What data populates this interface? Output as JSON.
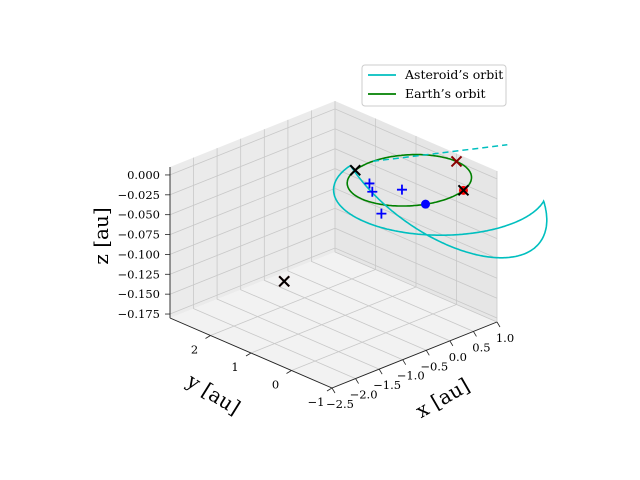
{
  "chart_data": {
    "type": "line3d",
    "xlabel": "x [au]",
    "ylabel": "y [au]",
    "zlabel": "z [au]",
    "xlim": [
      -2.5,
      1.0
    ],
    "ylim": [
      -1.0,
      3.0
    ],
    "zlim": [
      -0.18,
      0.01
    ],
    "x_ticks": [
      {
        "v": -2.5,
        "label": "−2.5"
      },
      {
        "v": -2.0,
        "label": "−2.0"
      },
      {
        "v": -1.5,
        "label": "−1.5"
      },
      {
        "v": -1.0,
        "label": "−1.0"
      },
      {
        "v": -0.5,
        "label": "−0.5"
      },
      {
        "v": 0.0,
        "label": "0.0"
      },
      {
        "v": 0.5,
        "label": "0.5"
      },
      {
        "v": 1.0,
        "label": "1.0"
      }
    ],
    "y_ticks": [
      {
        "v": -1,
        "label": "−1"
      },
      {
        "v": 0,
        "label": "0"
      },
      {
        "v": 1,
        "label": "1"
      },
      {
        "v": 2,
        "label": "2"
      }
    ],
    "z_ticks": [
      {
        "v": 0.0,
        "label": "0.000"
      },
      {
        "v": -0.025,
        "label": "−0.025"
      },
      {
        "v": -0.05,
        "label": "−0.050"
      },
      {
        "v": -0.075,
        "label": "−0.075"
      },
      {
        "v": -0.1,
        "label": "−0.100"
      },
      {
        "v": -0.125,
        "label": "−0.125"
      },
      {
        "v": -0.15,
        "label": "−0.150"
      },
      {
        "v": -0.175,
        "label": "−0.175"
      }
    ],
    "grid": true,
    "legend_position": "top-right",
    "series": [
      {
        "name": "Asteroid’s orbit",
        "color": "#00bfbf",
        "kind": "ellipse",
        "a": 1.85,
        "e": 0.459,
        "inclination_deg": 5.5,
        "node_deg": 110,
        "periapsis_deg": 335
      },
      {
        "name": "Earth’s orbit",
        "color": "#008000",
        "kind": "circle",
        "radius": 1.0
      }
    ],
    "line_of_nodes": {
      "color": "#00bfbf",
      "style": "dashed"
    },
    "markers": [
      {
        "kind": "dot",
        "color": "#0000ff",
        "x": -0.43,
        "y": -0.9,
        "z": 0.0
      },
      {
        "kind": "dot",
        "color": "#ff0000",
        "x": 0.34,
        "y": -0.94,
        "z": 0.0
      },
      {
        "kind": "cross",
        "color": "#000000",
        "x": -0.34,
        "y": 0.94,
        "z": 0.0
      },
      {
        "kind": "cross",
        "color": "#000000",
        "x": 0.34,
        "y": -0.94,
        "z": 0.0
      },
      {
        "kind": "cross",
        "color": "#8b0000",
        "x": 1.0,
        "y": 0.0,
        "z": 0.0
      },
      {
        "kind": "cross",
        "color": "#8b0000",
        "x": -0.55,
        "y": 2.45,
        "z": -0.168
      },
      {
        "kind": "cross",
        "color": "#000000",
        "x": -0.55,
        "y": 2.45,
        "z": -0.168
      },
      {
        "kind": "plus",
        "color": "#0000ff",
        "x": -0.52,
        "y": 0.38,
        "z": 0.0
      },
      {
        "kind": "plus",
        "color": "#0000ff",
        "x": -0.32,
        "y": -0.19,
        "z": 0.0
      },
      {
        "kind": "plus",
        "color": "#0000ff",
        "x": -0.7,
        "y": 0.1,
        "z": 0.0
      },
      {
        "kind": "plus",
        "color": "#0000ff",
        "x": -0.55,
        "y": 0.05,
        "z": -0.03
      }
    ]
  }
}
